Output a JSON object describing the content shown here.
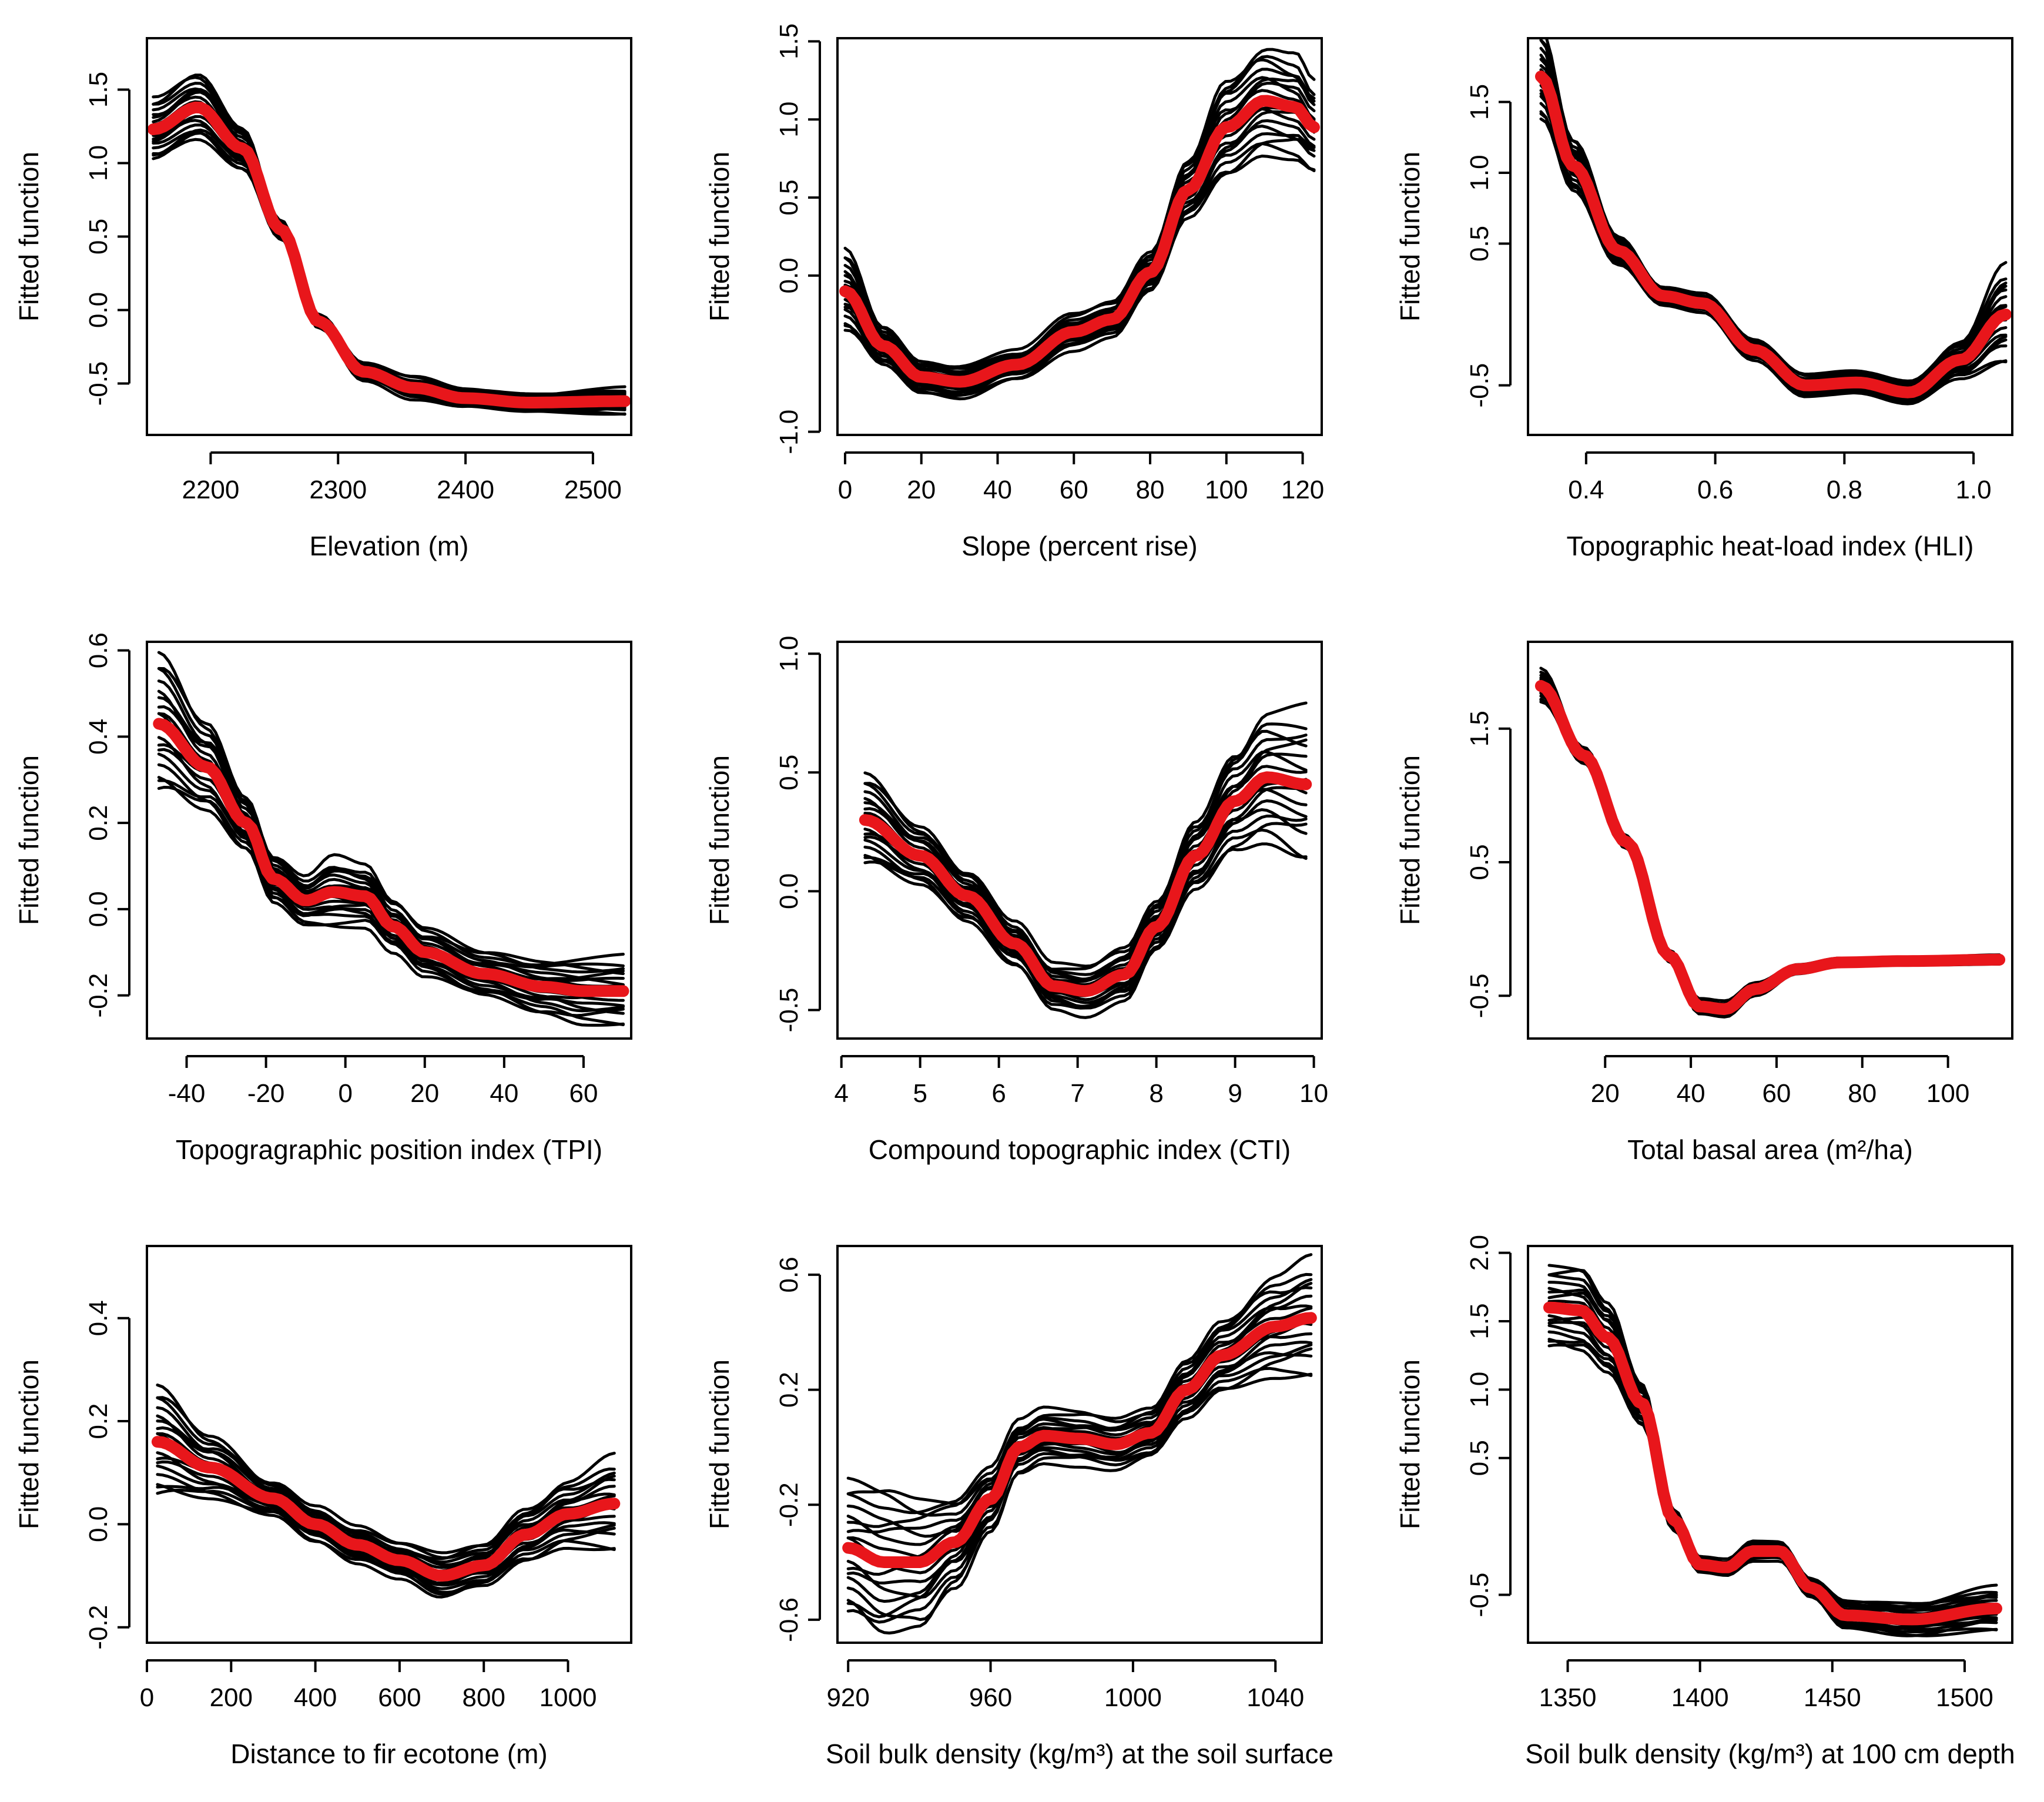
{
  "colors": {
    "ensemble_line": "#000000",
    "mean_line": "#e8161b",
    "axes": "#000000",
    "background": "#ffffff"
  },
  "chart_data": [
    {
      "type": "line",
      "xlabel": "Elevation (m)",
      "ylabel": "Fitted function",
      "xlim": [
        2150,
        2530
      ],
      "ylim": [
        -0.85,
        1.85
      ],
      "xticks": [
        2200,
        2300,
        2400,
        2500
      ],
      "yticks": [
        -0.5,
        0.0,
        0.5,
        1.0,
        1.5
      ],
      "xtick_labels": [
        "2200",
        "2300",
        "2400",
        "2500"
      ],
      "ytick_labels": [
        "-0.5",
        "0.0",
        "0.5",
        "1.0",
        "1.5"
      ],
      "x": [
        2155,
        2190,
        2225,
        2255,
        2285,
        2320,
        2360,
        2400,
        2450,
        2525
      ],
      "mean": [
        1.23,
        1.38,
        1.1,
        0.55,
        -0.08,
        -0.42,
        -0.53,
        -0.6,
        -0.63,
        -0.62
      ],
      "ensemble_spread": [
        0.2,
        0.22,
        0.14,
        0.06,
        0.04,
        0.05,
        0.07,
        0.06,
        0.06,
        0.08
      ],
      "ensemble_count": 18
    },
    {
      "type": "line",
      "xlabel": "Slope (percent rise)",
      "ylabel": "Fitted function",
      "xlim": [
        -2,
        125
      ],
      "ylim": [
        -1.02,
        1.52
      ],
      "xticks": [
        0,
        20,
        40,
        60,
        80,
        100,
        120
      ],
      "yticks": [
        -1.0,
        0.0,
        0.5,
        1.0,
        1.5
      ],
      "xtick_labels": [
        "0",
        "20",
        "40",
        "60",
        "80",
        "100",
        "120"
      ],
      "ytick_labels": [
        "-1.0",
        "0.0",
        "0.5",
        "1.0",
        "1.5"
      ],
      "x": [
        0,
        10,
        20,
        30,
        45,
        60,
        70,
        80,
        90,
        100,
        110,
        118,
        123
      ],
      "mean": [
        -0.1,
        -0.45,
        -0.65,
        -0.68,
        -0.57,
        -0.36,
        -0.28,
        0.02,
        0.55,
        0.95,
        1.12,
        1.08,
        0.95
      ],
      "ensemble_spread": [
        0.25,
        0.12,
        0.1,
        0.1,
        0.08,
        0.1,
        0.1,
        0.12,
        0.18,
        0.3,
        0.32,
        0.3,
        0.25
      ],
      "ensemble_count": 18
    },
    {
      "type": "line",
      "xlabel": "Topographic heat-load index (HLI)",
      "ylabel": "Fitted function",
      "xlim": [
        0.31,
        1.06
      ],
      "ylim": [
        -0.85,
        1.95
      ],
      "xticks": [
        0.4,
        0.6,
        0.8,
        1.0
      ],
      "yticks": [
        -0.5,
        0.5,
        1.0,
        1.5
      ],
      "xtick_labels": [
        "0.4",
        "0.6",
        "0.8",
        "1.0"
      ],
      "ytick_labels": [
        "-0.5",
        "0.5",
        "1.0",
        "1.5"
      ],
      "x": [
        0.33,
        0.38,
        0.45,
        0.52,
        0.58,
        0.66,
        0.74,
        0.82,
        0.9,
        0.98,
        1.05
      ],
      "mean": [
        1.68,
        1.05,
        0.45,
        0.13,
        0.08,
        -0.25,
        -0.5,
        -0.48,
        -0.55,
        -0.32,
        0.0
      ],
      "ensemble_spread": [
        0.3,
        0.18,
        0.1,
        0.06,
        0.06,
        0.06,
        0.07,
        0.08,
        0.08,
        0.12,
        0.3
      ],
      "ensemble_count": 18
    },
    {
      "type": "line",
      "xlabel": "Topogragraphic position index (TPI)",
      "ylabel": "Fitted function",
      "xlim": [
        -50,
        72
      ],
      "ylim": [
        -0.3,
        0.62
      ],
      "xticks": [
        -40,
        -20,
        0,
        20,
        40,
        60
      ],
      "yticks": [
        -0.2,
        0.0,
        0.2,
        0.4,
        0.6
      ],
      "xtick_labels": [
        "-40",
        "-20",
        "0",
        "20",
        "40",
        "60"
      ],
      "ytick_labels": [
        "-0.2",
        "0.0",
        "0.2",
        "0.4",
        "0.6"
      ],
      "x": [
        -47,
        -35,
        -25,
        -18,
        -10,
        -3,
        5,
        12,
        20,
        35,
        50,
        60,
        70
      ],
      "mean": [
        0.43,
        0.33,
        0.2,
        0.07,
        0.02,
        0.04,
        0.03,
        -0.04,
        -0.1,
        -0.15,
        -0.18,
        -0.19,
        -0.19
      ],
      "ensemble_spread": [
        0.15,
        0.1,
        0.06,
        0.05,
        0.05,
        0.07,
        0.06,
        0.05,
        0.05,
        0.05,
        0.06,
        0.07,
        0.07
      ],
      "ensemble_count": 18
    },
    {
      "type": "line",
      "xlabel": "Compound topographic index (CTI)",
      "ylabel": "Fitted function",
      "xlim": [
        3.95,
        10.1
      ],
      "ylim": [
        -0.62,
        1.05
      ],
      "xticks": [
        4,
        5,
        6,
        7,
        8,
        9,
        10
      ],
      "yticks": [
        -0.5,
        0.0,
        0.5,
        1.0
      ],
      "xtick_labels": [
        "4",
        "5",
        "6",
        "7",
        "8",
        "9",
        "10"
      ],
      "ytick_labels": [
        "-0.5",
        "0.0",
        "0.5",
        "1.0"
      ],
      "x": [
        4.3,
        5.0,
        5.6,
        6.2,
        6.7,
        7.1,
        7.6,
        8.0,
        8.5,
        9.0,
        9.4,
        9.9
      ],
      "mean": [
        0.3,
        0.15,
        -0.02,
        -0.22,
        -0.4,
        -0.42,
        -0.35,
        -0.15,
        0.15,
        0.38,
        0.48,
        0.45
      ],
      "ensemble_spread": [
        0.18,
        0.12,
        0.1,
        0.08,
        0.08,
        0.09,
        0.1,
        0.1,
        0.14,
        0.2,
        0.25,
        0.28
      ],
      "ensemble_count": 18
    },
    {
      "type": "line",
      "xlabel": "Total basal area (m²/ha)",
      "ylabel": "Fitted function",
      "xlim": [
        2,
        115
      ],
      "ylim": [
        -0.82,
        2.15
      ],
      "xticks": [
        20,
        40,
        60,
        80,
        100
      ],
      "yticks": [
        -0.5,
        0.5,
        1.5
      ],
      "xtick_labels": [
        "20",
        "40",
        "60",
        "80",
        "100"
      ],
      "ytick_labels": [
        "-0.5",
        "0.5",
        "1.5"
      ],
      "x": [
        5,
        15,
        25,
        35,
        42,
        48,
        55,
        65,
        75,
        90,
        112
      ],
      "mean": [
        1.82,
        1.3,
        0.65,
        -0.2,
        -0.58,
        -0.6,
        -0.45,
        -0.3,
        -0.25,
        -0.24,
        -0.23
      ],
      "ensemble_spread": [
        0.12,
        0.06,
        0.05,
        0.04,
        0.05,
        0.05,
        0.04,
        0.03,
        0.03,
        0.03,
        0.03
      ],
      "ensemble_count": 18
    },
    {
      "type": "line",
      "xlabel": "Distance to fir ecotone (m)",
      "ylabel": "Fitted function",
      "xlim": [
        0,
        1150
      ],
      "ylim": [
        -0.23,
        0.54
      ],
      "xticks": [
        0,
        200,
        400,
        600,
        800,
        1000
      ],
      "yticks": [
        -0.2,
        0.0,
        0.2,
        0.4
      ],
      "xtick_labels": [
        "0",
        "200",
        "400",
        "600",
        "800",
        "1000"
      ],
      "ytick_labels": [
        "-0.2",
        "0.0",
        "0.2",
        "0.4"
      ],
      "x": [
        25,
        150,
        300,
        400,
        500,
        600,
        700,
        800,
        900,
        1000,
        1110
      ],
      "mean": [
        0.16,
        0.11,
        0.05,
        0.0,
        -0.04,
        -0.07,
        -0.1,
        -0.08,
        -0.02,
        0.02,
        0.04
      ],
      "ensemble_spread": [
        0.1,
        0.06,
        0.03,
        0.03,
        0.03,
        0.03,
        0.04,
        0.04,
        0.05,
        0.06,
        0.08
      ],
      "ensemble_count": 18
    },
    {
      "type": "line",
      "xlabel": "Soil bulk density (kg/m³) at the soil surface",
      "ylabel": "Fitted function",
      "xlim": [
        917,
        1053
      ],
      "ylim": [
        -0.68,
        0.7
      ],
      "xticks": [
        920,
        960,
        1000,
        1040
      ],
      "yticks": [
        -0.6,
        -0.2,
        0.2,
        0.6
      ],
      "xtick_labels": [
        "920",
        "960",
        "1000",
        "1040"
      ],
      "ytick_labels": [
        "-0.6",
        "-0.2",
        "0.2",
        "0.6"
      ],
      "x": [
        920,
        930,
        940,
        950,
        960,
        968,
        975,
        985,
        995,
        1005,
        1015,
        1025,
        1040,
        1050
      ],
      "mean": [
        -0.35,
        -0.4,
        -0.4,
        -0.33,
        -0.18,
        0.0,
        0.04,
        0.03,
        0.01,
        0.05,
        0.2,
        0.32,
        0.42,
        0.45
      ],
      "ensemble_spread": [
        0.22,
        0.25,
        0.22,
        0.15,
        0.1,
        0.08,
        0.08,
        0.08,
        0.08,
        0.08,
        0.1,
        0.12,
        0.16,
        0.18
      ],
      "ensemble_count": 18
    },
    {
      "type": "line",
      "xlabel": "Soil bulk density (kg/m³) at 100 cm depth",
      "ylabel": "Fitted function",
      "xlim": [
        1335,
        1518
      ],
      "ylim": [
        -0.85,
        2.05
      ],
      "xticks": [
        1350,
        1400,
        1450,
        1500
      ],
      "yticks": [
        -0.5,
        0.5,
        1.0,
        1.5,
        2.0
      ],
      "xtick_labels": [
        "1350",
        "1400",
        "1450",
        "1500"
      ],
      "ytick_labels": [
        "-0.5",
        "0.5",
        "1.0",
        "1.5",
        "2.0"
      ],
      "x": [
        1343,
        1355,
        1365,
        1378,
        1390,
        1400,
        1410,
        1420,
        1430,
        1442,
        1455,
        1480,
        1512
      ],
      "mean": [
        1.6,
        1.58,
        1.38,
        0.9,
        0.05,
        -0.28,
        -0.3,
        -0.18,
        -0.18,
        -0.45,
        -0.65,
        -0.68,
        -0.6
      ],
      "ensemble_spread": [
        0.28,
        0.3,
        0.25,
        0.15,
        0.07,
        0.05,
        0.05,
        0.06,
        0.06,
        0.06,
        0.1,
        0.12,
        0.14
      ],
      "ensemble_count": 18
    }
  ]
}
